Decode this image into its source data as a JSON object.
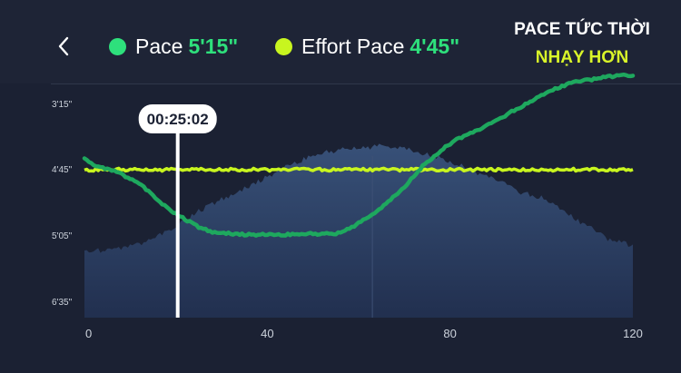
{
  "header": {
    "legend": [
      {
        "label": "Pace",
        "value": "5'15\"",
        "color": "#2ee07c"
      },
      {
        "label": "Effort Pace",
        "value": "4'45\"",
        "color": "#c8f51f"
      }
    ],
    "tag_line1": "PACE TỨC THỜI",
    "tag_line2": "NHẠY HƠN"
  },
  "cursor": {
    "label": "00:25:02",
    "x": 21
  },
  "chart_data": {
    "type": "line",
    "x_ticks": [
      0,
      40,
      80,
      120
    ],
    "xlim": [
      0,
      120
    ],
    "y_ticks": [
      "3'15\"",
      "4'45\"",
      "5'05\"",
      "6'35\""
    ],
    "grid": false,
    "series": [
      {
        "name": "Pace",
        "color": "#1ea85e",
        "x": [
          0,
          2,
          5,
          8,
          12,
          15,
          18,
          21,
          25,
          28,
          32,
          35,
          40,
          45,
          50,
          55,
          58,
          62,
          66,
          70,
          74,
          78,
          82,
          86,
          90,
          94,
          98,
          102,
          106,
          110,
          114,
          117,
          120
        ],
        "y": [
          0.18,
          0.06,
          0.01,
          -0.06,
          -0.2,
          -0.37,
          -0.55,
          -0.68,
          -0.83,
          -0.9,
          -0.93,
          -0.94,
          -0.94,
          -0.94,
          -0.93,
          -0.93,
          -0.85,
          -0.7,
          -0.5,
          -0.25,
          0.05,
          0.28,
          0.46,
          0.57,
          0.7,
          0.86,
          1.0,
          1.14,
          1.25,
          1.3,
          1.34,
          1.37,
          1.37
        ]
      },
      {
        "name": "Effort Pace",
        "color": "#c8f51f",
        "x": [
          0,
          20,
          40,
          60,
          80,
          100,
          120
        ],
        "y": [
          0,
          0,
          0,
          0,
          0,
          0,
          0
        ]
      }
    ],
    "elevation": {
      "x": [
        0,
        5,
        10,
        15,
        20,
        25,
        30,
        35,
        40,
        45,
        50,
        55,
        60,
        65,
        70,
        75,
        80,
        85,
        90,
        95,
        100,
        105,
        110,
        115,
        120
      ],
      "y": [
        -1.18,
        -1.16,
        -1.12,
        -1.0,
        -0.82,
        -0.6,
        -0.42,
        -0.28,
        -0.1,
        0.08,
        0.2,
        0.28,
        0.32,
        0.34,
        0.3,
        0.22,
        0.12,
        -0.02,
        -0.14,
        -0.33,
        -0.4,
        -0.62,
        -0.82,
        -1.02,
        -1.1
      ]
    }
  }
}
